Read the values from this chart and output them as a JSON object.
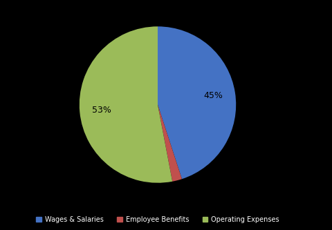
{
  "labels": [
    "Wages & Salaries",
    "Employee Benefits",
    "Operating Expenses"
  ],
  "values": [
    45,
    2,
    53
  ],
  "colors": [
    "#4472C4",
    "#C0504D",
    "#9BBB59"
  ],
  "background_color": "#000000",
  "text_color": "#000000",
  "figsize": [
    4.8,
    3.33
  ],
  "dpi": 100,
  "startangle": 90,
  "legend_fontsize": 7,
  "pct_fontsize": 9,
  "pct_distance": 0.72
}
